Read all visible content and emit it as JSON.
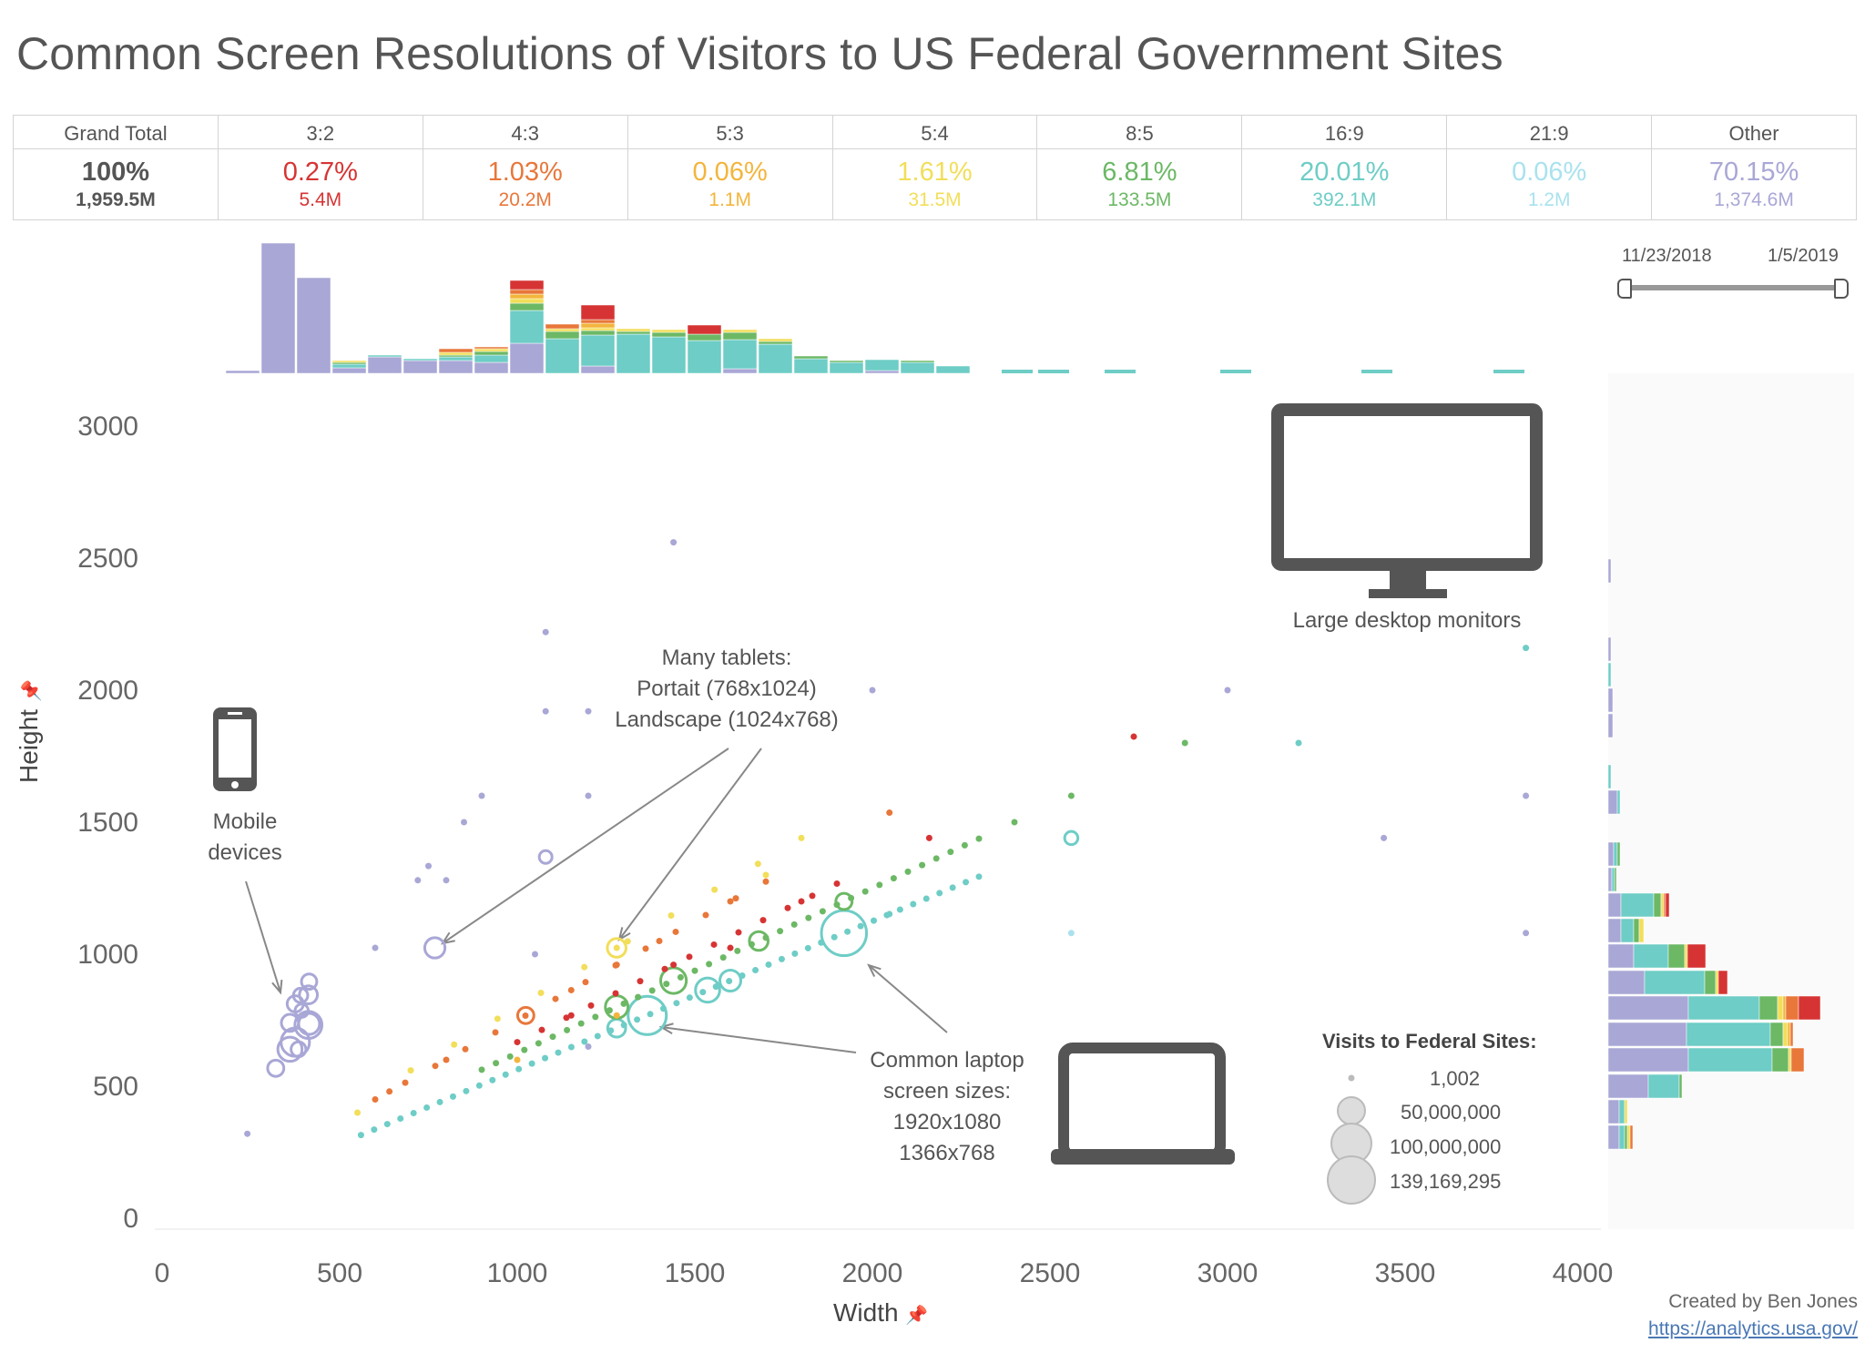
{
  "title": "Common Screen Resolutions of Visitors to US Federal Government Sites",
  "summary": [
    {
      "label": "Grand Total",
      "pct": "100%",
      "count": "1,959.5M",
      "color": "#555555"
    },
    {
      "label": "3:2",
      "pct": "0.27%",
      "count": "5.4M",
      "color": "#d63434"
    },
    {
      "label": "4:3",
      "pct": "1.03%",
      "count": "20.2M",
      "color": "#e8773a"
    },
    {
      "label": "5:3",
      "pct": "0.06%",
      "count": "1.1M",
      "color": "#f3b53c"
    },
    {
      "label": "5:4",
      "pct": "1.61%",
      "count": "31.5M",
      "color": "#f2de5a"
    },
    {
      "label": "8:5",
      "pct": "6.81%",
      "count": "133.5M",
      "color": "#6cb865"
    },
    {
      "label": "16:9",
      "pct": "20.01%",
      "count": "392.1M",
      "color": "#6ecdc6"
    },
    {
      "label": "21:9",
      "pct": "0.06%",
      "count": "1.2M",
      "color": "#a9e2ee"
    },
    {
      "label": "Other",
      "pct": "70.15%",
      "count": "1,374.6M",
      "color": "#a9a7d6"
    }
  ],
  "date_range": {
    "start": "11/23/2018",
    "end": "1/5/2019"
  },
  "annotations": {
    "tablets": [
      "Many tablets:",
      "Portait (768x1024)",
      "Landscape (1024x768)"
    ],
    "mobile": [
      "Mobile",
      "devices"
    ],
    "desktop": "Large desktop monitors",
    "laptop": [
      "Common laptop",
      "screen sizes:",
      "1920x1080",
      "1366x768"
    ]
  },
  "size_legend": {
    "title": "Visits to Federal Sites:",
    "items": [
      "1,002",
      "50,000,000",
      "100,000,000",
      "139,169,295"
    ]
  },
  "credit": {
    "author": "Created by Ben Jones",
    "link": "https://analytics.usa.gov/"
  },
  "icons": [
    "mobile-phone-icon",
    "desktop-monitor-icon",
    "laptop-icon",
    "pin-icon"
  ],
  "chart_data": {
    "type": "scatter",
    "title": "Common Screen Resolutions of Visitors to US Federal Government Sites",
    "xlabel": "Width",
    "ylabel": "Height",
    "xlim": [
      0,
      4000
    ],
    "ylim": [
      0,
      3000
    ],
    "xticks": [
      "0",
      "500",
      "1000",
      "1500",
      "2000",
      "2500",
      "3000",
      "3500",
      "4000"
    ],
    "yticks": [
      "0",
      "500",
      "1000",
      "1500",
      "2000",
      "2500",
      "3000"
    ],
    "aspect_colors": {
      "3:2": "#d63434",
      "4:3": "#e8773a",
      "5:3": "#f3b53c",
      "5:4": "#f2de5a",
      "8:5": "#6cb865",
      "16:9": "#6ecdc6",
      "21:9": "#a9e2ee",
      "Other": "#a9a7d6"
    },
    "points": [
      {
        "x": 360,
        "y": 640,
        "c": "Other",
        "s": 40
      },
      {
        "x": 375,
        "y": 667,
        "c": "Other",
        "s": 55
      },
      {
        "x": 412,
        "y": 732,
        "c": "Other",
        "s": 50
      },
      {
        "x": 414,
        "y": 736,
        "c": "Other",
        "s": 30
      },
      {
        "x": 320,
        "y": 568,
        "c": "Other",
        "s": 18
      },
      {
        "x": 360,
        "y": 740,
        "c": "Other",
        "s": 20
      },
      {
        "x": 384,
        "y": 640,
        "c": "Other",
        "s": 15
      },
      {
        "x": 412,
        "y": 846,
        "c": "Other",
        "s": 22
      },
      {
        "x": 375,
        "y": 812,
        "c": "Other",
        "s": 18
      },
      {
        "x": 390,
        "y": 844,
        "c": "Other",
        "s": 14
      },
      {
        "x": 414,
        "y": 896,
        "c": "Other",
        "s": 16
      },
      {
        "x": 393,
        "y": 786,
        "c": "Other",
        "s": 12
      },
      {
        "x": 768,
        "y": 1024,
        "c": "Other",
        "s": 28
      },
      {
        "x": 1366,
        "y": 768,
        "c": "16:9",
        "s": 100
      },
      {
        "x": 1920,
        "y": 1080,
        "c": "16:9",
        "s": 139
      },
      {
        "x": 1536,
        "y": 864,
        "c": "16:9",
        "s": 40
      },
      {
        "x": 1600,
        "y": 900,
        "c": "16:9",
        "s": 30
      },
      {
        "x": 1280,
        "y": 720,
        "c": "16:9",
        "s": 22
      },
      {
        "x": 2560,
        "y": 1440,
        "c": "16:9",
        "s": 12
      },
      {
        "x": 1440,
        "y": 900,
        "c": "8:5",
        "s": 45
      },
      {
        "x": 1280,
        "y": 800,
        "c": "8:5",
        "s": 35
      },
      {
        "x": 1680,
        "y": 1050,
        "c": "8:5",
        "s": 24
      },
      {
        "x": 1920,
        "y": 1200,
        "c": "8:5",
        "s": 18
      },
      {
        "x": 1024,
        "y": 768,
        "c": "4:3",
        "s": 18
      },
      {
        "x": 1280,
        "y": 1024,
        "c": "5:4",
        "s": 24
      },
      {
        "x": 1080,
        "y": 1368,
        "c": "Other",
        "s": 10
      },
      {
        "x": 2560,
        "y": 1080,
        "c": "21:9",
        "s": 5
      },
      {
        "x": 1440,
        "y": 2560,
        "c": "Other",
        "s": 4
      },
      {
        "x": 3000,
        "y": 2000,
        "c": "Other",
        "s": 4
      },
      {
        "x": 3840,
        "y": 2160,
        "c": "16:9",
        "s": 4
      },
      {
        "x": 2736,
        "y": 1824,
        "c": "3:2",
        "s": 4
      },
      {
        "x": 3440,
        "y": 1440,
        "c": "Other",
        "s": 4
      },
      {
        "x": 3840,
        "y": 1600,
        "c": "Other",
        "s": 4
      },
      {
        "x": 3840,
        "y": 1080,
        "c": "Other",
        "s": 4
      },
      {
        "x": 2000,
        "y": 2000,
        "c": "Other",
        "s": 4
      },
      {
        "x": 1080,
        "y": 2220,
        "c": "Other",
        "s": 4
      },
      {
        "x": 1080,
        "y": 1920,
        "c": "Other",
        "s": 4
      },
      {
        "x": 1200,
        "y": 1920,
        "c": "Other",
        "s": 4
      },
      {
        "x": 1200,
        "y": 1600,
        "c": "Other",
        "s": 4
      },
      {
        "x": 800,
        "y": 1280,
        "c": "Other",
        "s": 4
      },
      {
        "x": 900,
        "y": 1600,
        "c": "Other",
        "s": 4
      },
      {
        "x": 720,
        "y": 1280,
        "c": "Other",
        "s": 4
      },
      {
        "x": 600,
        "y": 1024,
        "c": "Other",
        "s": 4
      },
      {
        "x": 240,
        "y": 320,
        "c": "Other",
        "s": 4
      },
      {
        "x": 1600,
        "y": 1200,
        "c": "4:3",
        "s": 4
      },
      {
        "x": 1400,
        "y": 1050,
        "c": "4:3",
        "s": 4
      },
      {
        "x": 1152,
        "y": 864,
        "c": "4:3",
        "s": 4
      },
      {
        "x": 800,
        "y": 600,
        "c": "4:3",
        "s": 4
      },
      {
        "x": 640,
        "y": 480,
        "c": "4:3",
        "s": 4
      },
      {
        "x": 2048,
        "y": 1536,
        "c": "4:3",
        "s": 4
      },
      {
        "x": 1280,
        "y": 960,
        "c": "4:3",
        "s": 4
      },
      {
        "x": 1600,
        "y": 1024,
        "c": "3:2",
        "s": 4
      },
      {
        "x": 2160,
        "y": 1440,
        "c": "3:2",
        "s": 4
      },
      {
        "x": 1440,
        "y": 960,
        "c": "3:2",
        "s": 4
      },
      {
        "x": 1152,
        "y": 768,
        "c": "3:2",
        "s": 4
      },
      {
        "x": 1800,
        "y": 1200,
        "c": "3:2",
        "s": 4
      },
      {
        "x": 2560,
        "y": 1600,
        "c": "8:5",
        "s": 4
      },
      {
        "x": 2880,
        "y": 1800,
        "c": "8:5",
        "s": 4
      },
      {
        "x": 2400,
        "y": 1500,
        "c": "8:5",
        "s": 4
      },
      {
        "x": 3200,
        "y": 1800,
        "c": "16:9",
        "s": 4
      },
      {
        "x": 2048,
        "y": 1152,
        "c": "16:9",
        "s": 4
      },
      {
        "x": 1280,
        "y": 1024,
        "c": "5:4",
        "s": 4
      },
      {
        "x": 1000,
        "y": 600,
        "c": "5:3",
        "s": 4
      },
      {
        "x": 1280,
        "y": 768,
        "c": "5:3",
        "s": 4
      },
      {
        "x": 1700,
        "y": 1300,
        "c": "5:4",
        "s": 4
      },
      {
        "x": 550,
        "y": 400,
        "c": "5:4",
        "s": 4
      },
      {
        "x": 750,
        "y": 1334,
        "c": "Other",
        "s": 4
      },
      {
        "x": 1050,
        "y": 1000,
        "c": "Other",
        "s": 4
      },
      {
        "x": 850,
        "y": 1500,
        "c": "Other",
        "s": 4
      },
      {
        "x": 1200,
        "y": 650,
        "c": "Other",
        "s": 4
      }
    ]
  },
  "top_histogram": {
    "x_bins": [
      "0-100",
      "100-200",
      "200-300",
      "300-400",
      "400-500",
      "500-600",
      "600-700",
      "700-800",
      "800-900",
      "900-1000",
      "1000-1100",
      "1100-1200",
      "1200-1300",
      "1300-1400",
      "1400-1500",
      "1500-1600",
      "1600-1700",
      "1700-1800",
      "1800-1900",
      "1900-2000",
      "2000-2100",
      "2100-2200",
      "2200-2300",
      "2300-2400",
      "2400-2500",
      "2500-2600",
      "2600-2700",
      "2700-2800",
      "2800-2900",
      "2900-3000",
      "3000-3100",
      "3100-3200",
      "3200-3300",
      "3300-3400",
      "3400-3500",
      "3500-3600",
      "3600-3700",
      "3700-3800",
      "3800-3900",
      "3900-4000"
    ],
    "description": "Visits by width bin, stacked by aspect ratio"
  },
  "right_histogram": {
    "description": "Visits by height bin, stacked by aspect ratio"
  }
}
